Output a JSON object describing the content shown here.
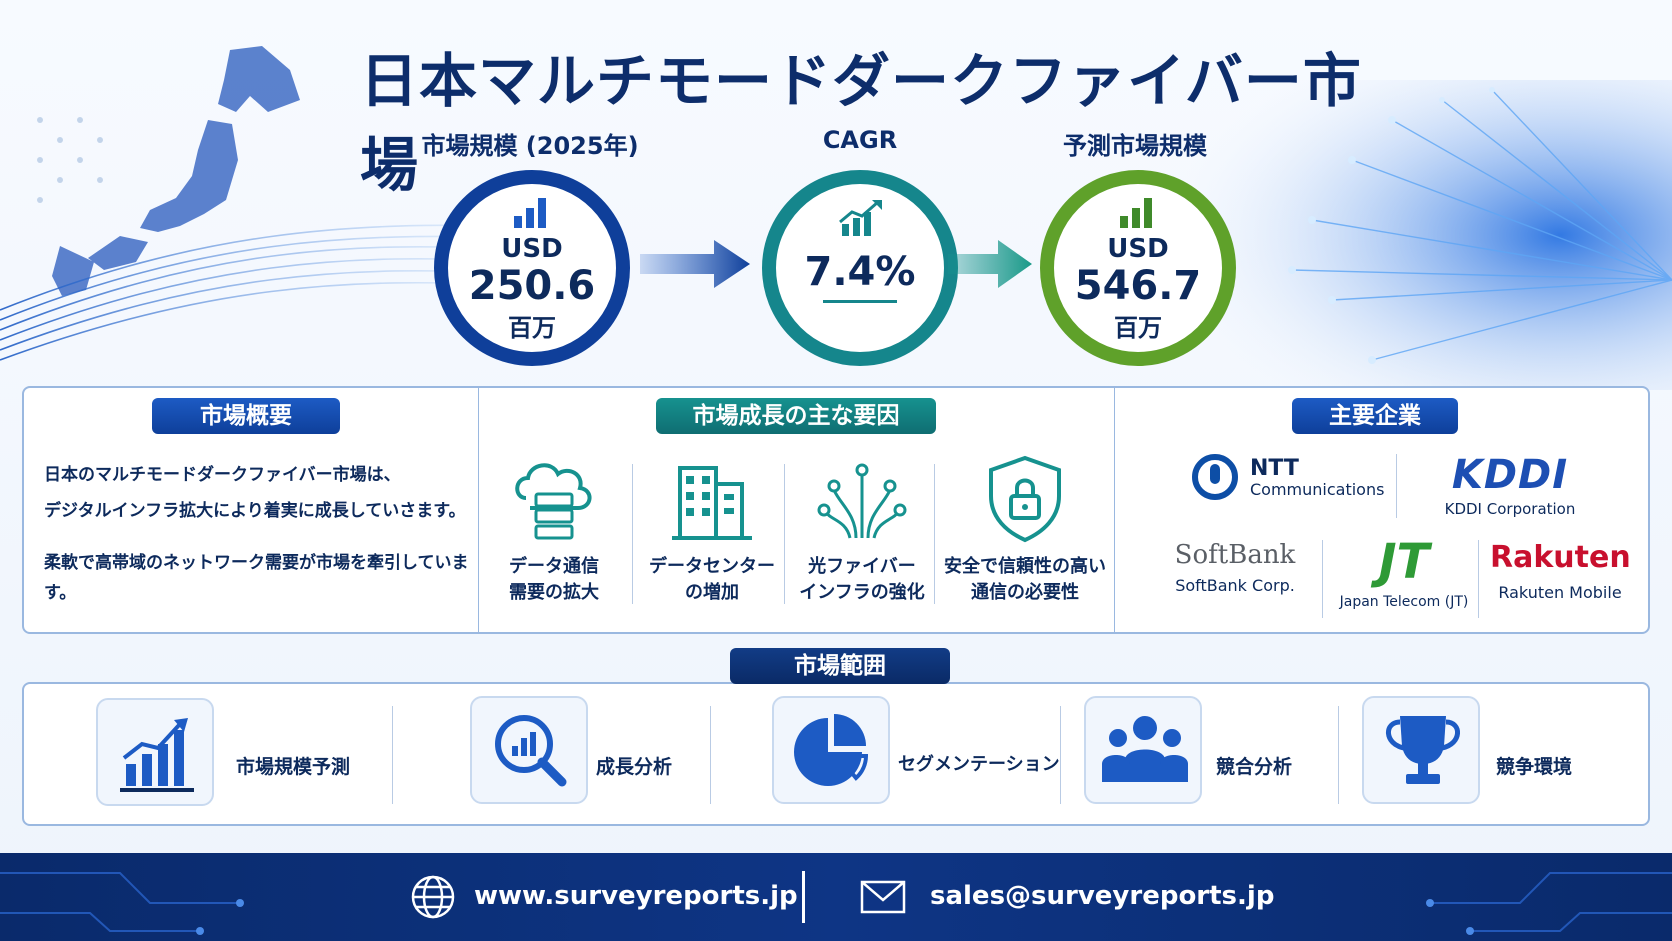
{
  "title": "日本マルチモードダークファイバー市場",
  "metrics": [
    {
      "label": "市場規模 (2025年)",
      "prefix": "USD",
      "value": "250.6",
      "unit": "百万",
      "ring_color": "#0f3f9a"
    },
    {
      "label": "CAGR",
      "prefix": "",
      "value": "7.4%",
      "unit": "",
      "ring_color": "#15868c"
    },
    {
      "label": "予測市場規模",
      "prefix": "USD",
      "value": "546.7",
      "unit": "百万",
      "ring_color": "#5fa12a"
    }
  ],
  "overview": {
    "heading": "市場概要",
    "line1": "日本のマルチモードダークファイバー市場は、",
    "line2": "デジタルインフラ拡大により着実に成長していさます。",
    "line3": "柔軟で高帯域のネットワーク需要が市場を牽引しています。"
  },
  "drivers": {
    "heading": "市場成長の主な要因",
    "items": [
      {
        "line1": "データ通信",
        "line2": "需要の拡大",
        "icon": "cloud-server-icon"
      },
      {
        "line1": "データセンター",
        "line2": "の増加",
        "icon": "building-icon"
      },
      {
        "line1": "光ファイバー",
        "line2": "インフラの強化",
        "icon": "fiber-circuit-icon"
      },
      {
        "line1": "安全で信頼性の高い",
        "line2": "通信の必要性",
        "icon": "shield-lock-icon"
      }
    ]
  },
  "companies": {
    "heading": "主要企業",
    "ntt": {
      "logo": "NTT",
      "sub": "Communications"
    },
    "kddi": {
      "logo": "KDDI",
      "sub": "KDDI Corporation"
    },
    "softbank": {
      "logo": "SoftBank",
      "sub": "SoftBank Corp."
    },
    "jt": {
      "logo": "JT",
      "sub": "Japan Telecom (JT)"
    },
    "rakuten": {
      "logo": "Rakuten",
      "sub": "Rakuten Mobile"
    }
  },
  "scope": {
    "heading": "市場範囲",
    "items": [
      {
        "label": "市場規模予測",
        "icon": "bar-chart-up-icon"
      },
      {
        "label": "成長分析",
        "icon": "magnifier-chart-icon"
      },
      {
        "label": "セグメンテーション",
        "icon": "pie-chart-icon"
      },
      {
        "label": "競合分析",
        "icon": "people-group-icon"
      },
      {
        "label": "競争環境",
        "icon": "trophy-icon"
      }
    ]
  },
  "footer": {
    "website": "www.surveyreports.jp",
    "email": "sales@surveyreports.jp"
  },
  "colors": {
    "navy": "#0d2d6b",
    "blue": "#1d5bc4",
    "teal": "#16928f",
    "green": "#5fa12a"
  }
}
